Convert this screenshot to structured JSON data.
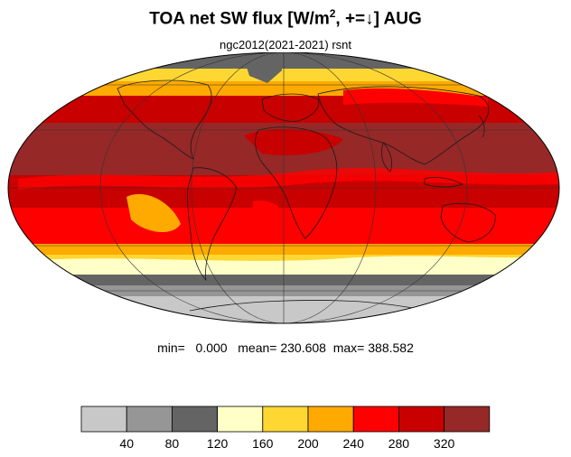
{
  "title": {
    "main": "TOA net SW flux [W/m",
    "sup": "2",
    "rest": ", +=↓]  AUG"
  },
  "subtitle": "ngc2012(2021-2021)   rsnt",
  "stats": {
    "min_label": "min=",
    "min": "0.000",
    "mean_label": "mean=",
    "mean": "230.608",
    "max_label": "max=",
    "max": "388.582"
  },
  "colorbar": {
    "levels": [
      40,
      80,
      120,
      160,
      200,
      240,
      280,
      320
    ],
    "tick_labels": [
      "40",
      "80",
      "120",
      "160",
      "200",
      "240",
      "280",
      "320"
    ],
    "colors": [
      "#c8c8c8",
      "#969696",
      "#646464",
      "#ffffc8",
      "#ffd732",
      "#ffaa00",
      "#ff0000",
      "#c80000",
      "#962828"
    ]
  },
  "colors": {
    "coastline": "#1a1a1a",
    "gridline": "#333333"
  }
}
